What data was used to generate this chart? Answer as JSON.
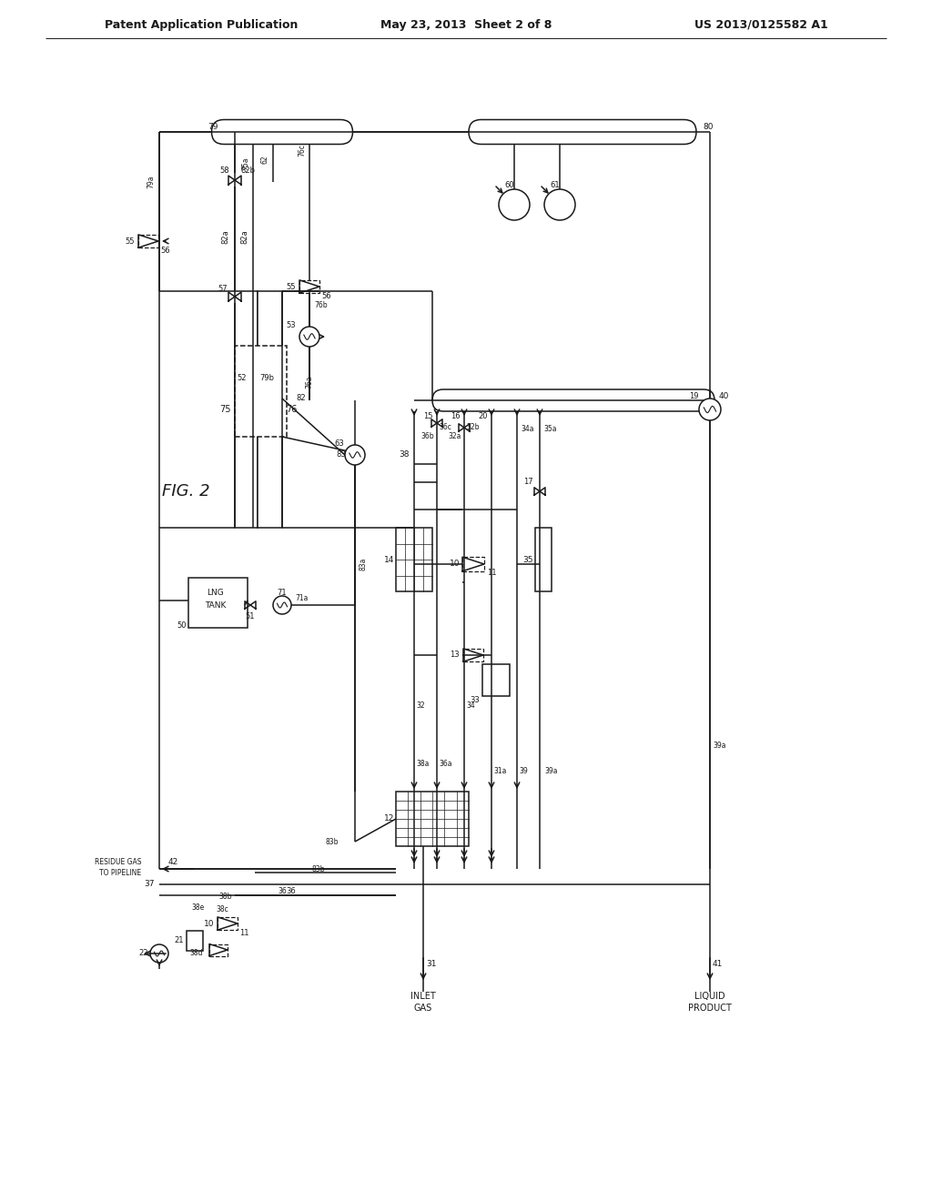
{
  "header_left": "Patent Application Publication",
  "header_mid": "May 23, 2013  Sheet 2 of 8",
  "header_right": "US 2013/0125582 A1",
  "fig_label": "FIG. 2",
  "bg": "#ffffff",
  "lc": "#1a1a1a",
  "lw": 1.1,
  "fs": 6.5,
  "hfs": 9.0
}
